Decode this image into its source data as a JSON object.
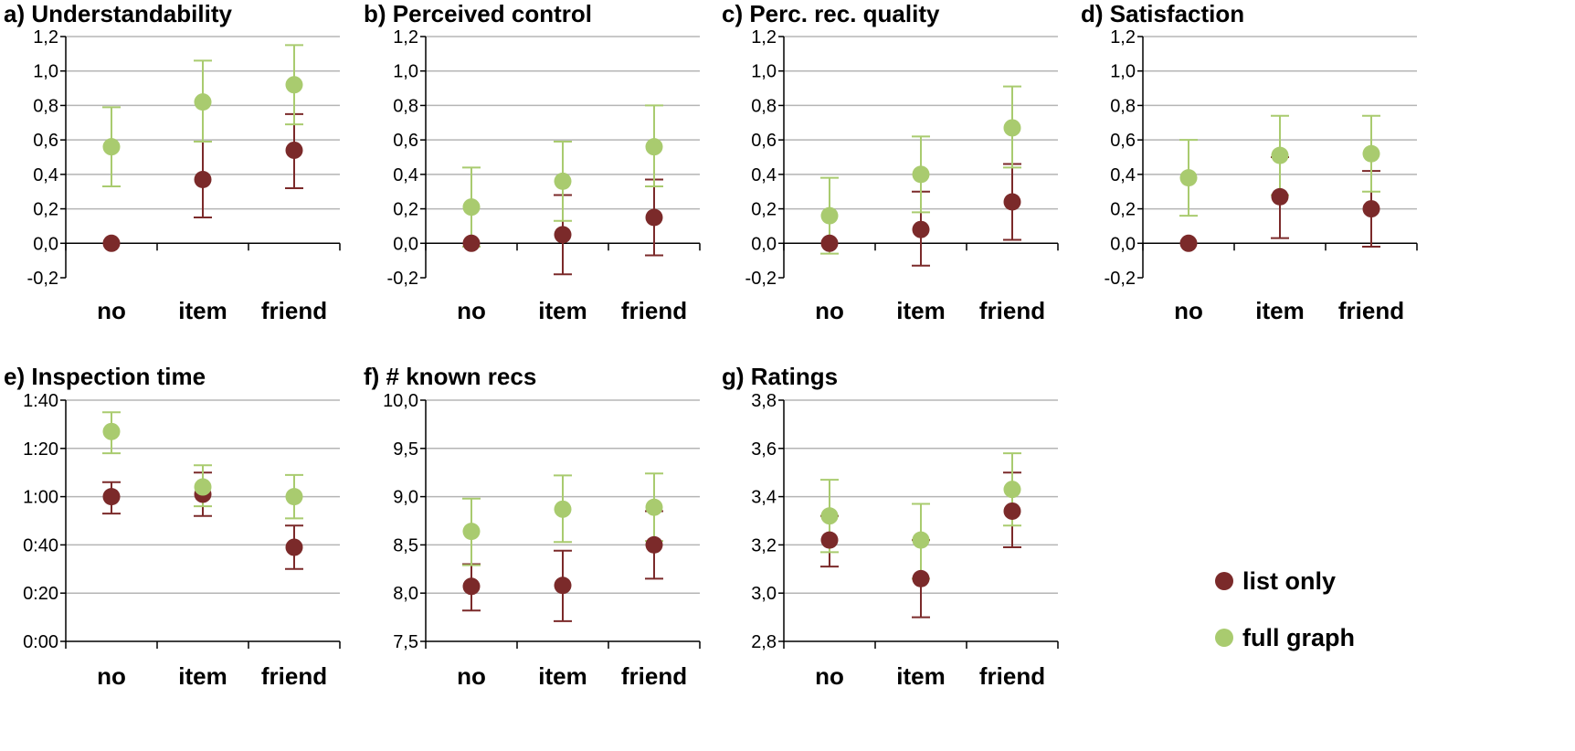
{
  "colors": {
    "list_only": "#7B2A2A",
    "full_graph": "#A9CB6F",
    "grid": "#B5B5B5",
    "axis": "#000000"
  },
  "legend": [
    {
      "name": "list only",
      "colorKey": "list_only"
    },
    {
      "name": "full graph",
      "colorKey": "full_graph"
    }
  ],
  "chart_data": [
    {
      "type": "scatter",
      "title": "a) Understandability",
      "categories": [
        "no",
        "item",
        "friend"
      ],
      "ylim": [
        -0.2,
        1.2
      ],
      "yticks": [
        -0.2,
        0,
        0.2,
        0.4,
        0.6,
        0.8,
        1.0,
        1.2
      ],
      "yticklabels": [
        "-0,2",
        "0,0",
        "0,2",
        "0,4",
        "0,6",
        "0,8",
        "1,0",
        "1,2"
      ],
      "series": [
        {
          "name": "list only",
          "values": [
            0.0,
            0.37,
            0.54
          ],
          "lower": [
            null,
            0.15,
            0.32
          ],
          "upper": [
            null,
            0.59,
            0.75
          ]
        },
        {
          "name": "full graph",
          "values": [
            0.56,
            0.82,
            0.92
          ],
          "lower": [
            0.33,
            0.59,
            0.69
          ],
          "upper": [
            0.79,
            1.06,
            1.15
          ]
        }
      ]
    },
    {
      "type": "scatter",
      "title": "b) Perceived control",
      "categories": [
        "no",
        "item",
        "friend"
      ],
      "ylim": [
        -0.2,
        1.2
      ],
      "yticks": [
        -0.2,
        0,
        0.2,
        0.4,
        0.6,
        0.8,
        1.0,
        1.2
      ],
      "yticklabels": [
        "-0,2",
        "0,0",
        "0,2",
        "0,4",
        "0,6",
        "0,8",
        "1,0",
        "1,2"
      ],
      "series": [
        {
          "name": "list only",
          "values": [
            0.0,
            0.05,
            0.15
          ],
          "lower": [
            null,
            -0.18,
            -0.07
          ],
          "upper": [
            null,
            0.28,
            0.37
          ]
        },
        {
          "name": "full graph",
          "values": [
            0.21,
            0.36,
            0.56
          ],
          "lower": [
            -0.02,
            0.13,
            0.33
          ],
          "upper": [
            0.44,
            0.59,
            0.8
          ]
        }
      ]
    },
    {
      "type": "scatter",
      "title": "c) Perc. rec. quality",
      "categories": [
        "no",
        "item",
        "friend"
      ],
      "ylim": [
        -0.2,
        1.2
      ],
      "yticks": [
        -0.2,
        0,
        0.2,
        0.4,
        0.6,
        0.8,
        1.0,
        1.2
      ],
      "yticklabels": [
        "-0,2",
        "0,0",
        "0,2",
        "0,4",
        "0,6",
        "0,8",
        "1,0",
        "1,2"
      ],
      "series": [
        {
          "name": "list only",
          "values": [
            0.0,
            0.08,
            0.24
          ],
          "lower": [
            null,
            -0.13,
            0.02
          ],
          "upper": [
            null,
            0.3,
            0.46
          ]
        },
        {
          "name": "full graph",
          "values": [
            0.16,
            0.4,
            0.67
          ],
          "lower": [
            -0.06,
            0.18,
            0.44
          ],
          "upper": [
            0.38,
            0.62,
            0.91
          ]
        }
      ]
    },
    {
      "type": "scatter",
      "title": "d) Satisfaction",
      "categories": [
        "no",
        "item",
        "friend"
      ],
      "ylim": [
        -0.2,
        1.2
      ],
      "yticks": [
        -0.2,
        0,
        0.2,
        0.4,
        0.6,
        0.8,
        1.0,
        1.2
      ],
      "yticklabels": [
        "-0,2",
        "0,0",
        "0,2",
        "0,4",
        "0,6",
        "0,8",
        "1,0",
        "1,2"
      ],
      "series": [
        {
          "name": "list only",
          "values": [
            0.0,
            0.27,
            0.2
          ],
          "lower": [
            null,
            0.03,
            -0.02
          ],
          "upper": [
            null,
            0.5,
            0.42
          ]
        },
        {
          "name": "full graph",
          "values": [
            0.38,
            0.51,
            0.52
          ],
          "lower": [
            0.16,
            0.28,
            0.3
          ],
          "upper": [
            0.6,
            0.74,
            0.74
          ]
        }
      ]
    },
    {
      "type": "scatter",
      "title": "e) Inspection time",
      "categories": [
        "no",
        "item",
        "friend"
      ],
      "ylim": [
        0,
        100
      ],
      "yticks": [
        0,
        20,
        40,
        60,
        80,
        100
      ],
      "yticklabels": [
        "0:00",
        "0:20",
        "0:40",
        "1:00",
        "1:20",
        "1:40"
      ],
      "series": [
        {
          "name": "list only",
          "values": [
            60,
            61,
            39
          ],
          "lower": [
            53,
            52,
            30
          ],
          "upper": [
            66,
            70,
            48
          ]
        },
        {
          "name": "full graph",
          "values": [
            87,
            64,
            60
          ],
          "lower": [
            78,
            56,
            51
          ],
          "upper": [
            95,
            73,
            69
          ]
        }
      ]
    },
    {
      "type": "scatter",
      "title": "f) # known recs",
      "categories": [
        "no",
        "item",
        "friend"
      ],
      "ylim": [
        7.5,
        10.0
      ],
      "yticks": [
        7.5,
        8.0,
        8.5,
        9.0,
        9.5,
        10.0
      ],
      "yticklabels": [
        "7,5",
        "8,0",
        "8,5",
        "9,0",
        "9,5",
        "10,0"
      ],
      "series": [
        {
          "name": "list only",
          "values": [
            8.07,
            8.08,
            8.5
          ],
          "lower": [
            7.82,
            7.71,
            8.15
          ],
          "upper": [
            8.3,
            8.44,
            8.85
          ]
        },
        {
          "name": "full graph",
          "values": [
            8.64,
            8.87,
            8.89
          ],
          "lower": [
            8.29,
            8.53,
            8.54
          ],
          "upper": [
            8.98,
            9.22,
            9.24
          ]
        }
      ]
    },
    {
      "type": "scatter",
      "title": "g) Ratings",
      "categories": [
        "no",
        "item",
        "friend"
      ],
      "ylim": [
        2.8,
        3.8
      ],
      "yticks": [
        2.8,
        3.0,
        3.2,
        3.4,
        3.6,
        3.8
      ],
      "yticklabels": [
        "2,8",
        "3,0",
        "3,2",
        "3,4",
        "3,6",
        "3,8"
      ],
      "series": [
        {
          "name": "list only",
          "values": [
            3.22,
            3.06,
            3.34
          ],
          "lower": [
            3.11,
            2.9,
            3.19
          ],
          "upper": [
            3.32,
            3.22,
            3.5
          ]
        },
        {
          "name": "full graph",
          "values": [
            3.32,
            3.22,
            3.43
          ],
          "lower": [
            3.17,
            3.06,
            3.28
          ],
          "upper": [
            3.47,
            3.37,
            3.58
          ]
        }
      ]
    }
  ]
}
